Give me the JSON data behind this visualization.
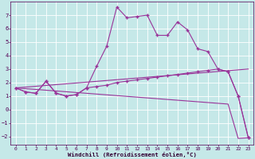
{
  "xlabel": "Windchill (Refroidissement éolien,°C)",
  "bg_color": "#c5e8e8",
  "line_color": "#993399",
  "grid_color": "#ffffff",
  "xlim": [
    -0.5,
    23.5
  ],
  "ylim": [
    -2.6,
    8.0
  ],
  "yticks": [
    -2,
    -1,
    0,
    1,
    2,
    3,
    4,
    5,
    6,
    7
  ],
  "xticks": [
    0,
    1,
    2,
    3,
    4,
    5,
    6,
    7,
    8,
    9,
    10,
    11,
    12,
    13,
    14,
    15,
    16,
    17,
    18,
    19,
    20,
    21,
    22,
    23
  ],
  "line1_x": [
    0,
    1,
    2,
    3,
    4,
    5,
    6,
    7,
    8,
    9,
    10,
    11,
    12,
    13,
    14,
    15,
    16,
    17,
    18,
    19,
    20,
    21,
    22,
    23
  ],
  "line1_y": [
    1.6,
    1.3,
    1.2,
    2.1,
    1.2,
    1.0,
    1.1,
    1.6,
    3.2,
    4.7,
    7.6,
    6.8,
    6.9,
    7.0,
    5.5,
    5.5,
    6.5,
    5.9,
    4.5,
    4.3,
    3.0,
    2.8,
    1.0,
    -2.1
  ],
  "line2_x": [
    0,
    1,
    2,
    3,
    4,
    5,
    6,
    7,
    8,
    9,
    10,
    11,
    12,
    13,
    14,
    15,
    16,
    17,
    18,
    19,
    20,
    21,
    22,
    23
  ],
  "line2_y": [
    1.6,
    1.3,
    1.2,
    2.1,
    1.2,
    1.0,
    1.1,
    1.6,
    1.7,
    1.8,
    2.0,
    2.1,
    2.2,
    2.3,
    2.4,
    2.5,
    2.6,
    2.7,
    2.8,
    2.9,
    3.0,
    2.8,
    1.0,
    -2.1
  ],
  "line3_x": [
    0,
    21,
    22,
    23
  ],
  "line3_y": [
    1.6,
    0.4,
    -2.15,
    -2.1
  ],
  "line4_x": [
    0,
    23
  ],
  "line4_y": [
    1.6,
    3.0
  ]
}
